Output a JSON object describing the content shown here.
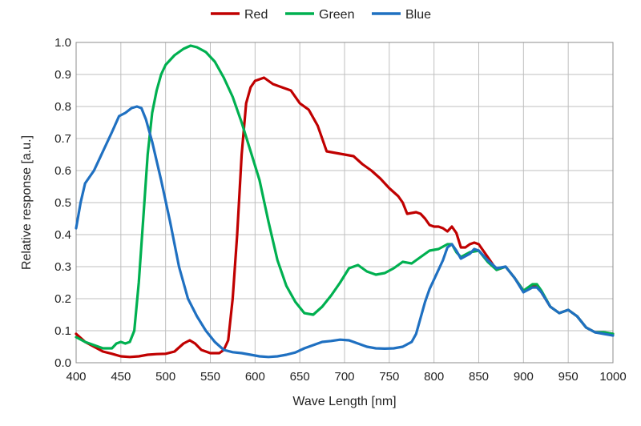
{
  "chart_data": {
    "type": "line",
    "title": "",
    "xlabel": "Wave Length [nm]",
    "ylabel": "Relative response [a.u.]",
    "xlim": [
      400,
      1000
    ],
    "ylim": [
      0,
      1.0
    ],
    "grid": true,
    "legend_position": "top",
    "x_ticks": [
      "400",
      "450",
      "500",
      "550",
      "600",
      "650",
      "700",
      "750",
      "800",
      "850",
      "900",
      "950",
      "1000"
    ],
    "y_ticks": [
      "0.0",
      "0.1",
      "0.2",
      "0.3",
      "0.4",
      "0.5",
      "0.6",
      "0.7",
      "0.8",
      "0.9",
      "1.0"
    ],
    "series": [
      {
        "name": "Red",
        "color": "#c00000",
        "points": [
          [
            400,
            0.09
          ],
          [
            410,
            0.065
          ],
          [
            420,
            0.05
          ],
          [
            430,
            0.035
          ],
          [
            440,
            0.028
          ],
          [
            450,
            0.02
          ],
          [
            460,
            0.018
          ],
          [
            470,
            0.02
          ],
          [
            480,
            0.025
          ],
          [
            490,
            0.027
          ],
          [
            500,
            0.028
          ],
          [
            510,
            0.035
          ],
          [
            520,
            0.06
          ],
          [
            527,
            0.07
          ],
          [
            533,
            0.06
          ],
          [
            540,
            0.04
          ],
          [
            550,
            0.03
          ],
          [
            560,
            0.03
          ],
          [
            565,
            0.04
          ],
          [
            570,
            0.07
          ],
          [
            575,
            0.2
          ],
          [
            580,
            0.4
          ],
          [
            585,
            0.65
          ],
          [
            590,
            0.81
          ],
          [
            595,
            0.86
          ],
          [
            600,
            0.88
          ],
          [
            605,
            0.885
          ],
          [
            610,
            0.89
          ],
          [
            615,
            0.88
          ],
          [
            620,
            0.87
          ],
          [
            630,
            0.86
          ],
          [
            640,
            0.85
          ],
          [
            650,
            0.81
          ],
          [
            660,
            0.79
          ],
          [
            670,
            0.74
          ],
          [
            675,
            0.7
          ],
          [
            680,
            0.66
          ],
          [
            690,
            0.655
          ],
          [
            700,
            0.65
          ],
          [
            710,
            0.645
          ],
          [
            720,
            0.62
          ],
          [
            730,
            0.6
          ],
          [
            740,
            0.575
          ],
          [
            750,
            0.545
          ],
          [
            760,
            0.52
          ],
          [
            765,
            0.5
          ],
          [
            770,
            0.465
          ],
          [
            780,
            0.47
          ],
          [
            785,
            0.465
          ],
          [
            790,
            0.45
          ],
          [
            795,
            0.43
          ],
          [
            800,
            0.425
          ],
          [
            805,
            0.425
          ],
          [
            810,
            0.42
          ],
          [
            815,
            0.41
          ],
          [
            820,
            0.425
          ],
          [
            825,
            0.405
          ],
          [
            830,
            0.36
          ],
          [
            835,
            0.36
          ],
          [
            840,
            0.37
          ],
          [
            845,
            0.375
          ],
          [
            850,
            0.37
          ],
          [
            855,
            0.35
          ],
          [
            860,
            0.33
          ],
          [
            870,
            0.29
          ],
          [
            880,
            0.3
          ],
          [
            890,
            0.265
          ],
          [
            900,
            0.225
          ],
          [
            910,
            0.24
          ],
          [
            915,
            0.24
          ],
          [
            920,
            0.22
          ],
          [
            930,
            0.175
          ],
          [
            940,
            0.155
          ],
          [
            950,
            0.165
          ],
          [
            960,
            0.145
          ],
          [
            970,
            0.11
          ],
          [
            980,
            0.095
          ],
          [
            990,
            0.095
          ],
          [
            1000,
            0.09
          ]
        ]
      },
      {
        "name": "Green",
        "color": "#00b050",
        "points": [
          [
            400,
            0.08
          ],
          [
            410,
            0.065
          ],
          [
            420,
            0.055
          ],
          [
            430,
            0.045
          ],
          [
            440,
            0.045
          ],
          [
            445,
            0.06
          ],
          [
            450,
            0.065
          ],
          [
            455,
            0.06
          ],
          [
            460,
            0.065
          ],
          [
            465,
            0.1
          ],
          [
            470,
            0.25
          ],
          [
            475,
            0.45
          ],
          [
            480,
            0.65
          ],
          [
            485,
            0.78
          ],
          [
            490,
            0.85
          ],
          [
            495,
            0.9
          ],
          [
            500,
            0.93
          ],
          [
            510,
            0.96
          ],
          [
            520,
            0.98
          ],
          [
            528,
            0.99
          ],
          [
            535,
            0.985
          ],
          [
            545,
            0.97
          ],
          [
            555,
            0.94
          ],
          [
            565,
            0.89
          ],
          [
            575,
            0.83
          ],
          [
            585,
            0.75
          ],
          [
            595,
            0.66
          ],
          [
            605,
            0.57
          ],
          [
            615,
            0.44
          ],
          [
            625,
            0.32
          ],
          [
            635,
            0.24
          ],
          [
            645,
            0.19
          ],
          [
            655,
            0.155
          ],
          [
            665,
            0.15
          ],
          [
            675,
            0.175
          ],
          [
            685,
            0.21
          ],
          [
            695,
            0.25
          ],
          [
            705,
            0.295
          ],
          [
            715,
            0.305
          ],
          [
            725,
            0.285
          ],
          [
            735,
            0.275
          ],
          [
            745,
            0.28
          ],
          [
            755,
            0.295
          ],
          [
            765,
            0.315
          ],
          [
            775,
            0.31
          ],
          [
            785,
            0.33
          ],
          [
            795,
            0.35
          ],
          [
            805,
            0.355
          ],
          [
            815,
            0.37
          ],
          [
            820,
            0.37
          ],
          [
            825,
            0.345
          ],
          [
            830,
            0.33
          ],
          [
            840,
            0.345
          ],
          [
            850,
            0.35
          ],
          [
            860,
            0.315
          ],
          [
            870,
            0.29
          ],
          [
            880,
            0.3
          ],
          [
            890,
            0.265
          ],
          [
            900,
            0.225
          ],
          [
            910,
            0.245
          ],
          [
            915,
            0.245
          ],
          [
            920,
            0.225
          ],
          [
            930,
            0.175
          ],
          [
            940,
            0.155
          ],
          [
            950,
            0.165
          ],
          [
            960,
            0.145
          ],
          [
            970,
            0.11
          ],
          [
            980,
            0.095
          ],
          [
            990,
            0.095
          ],
          [
            1000,
            0.09
          ]
        ]
      },
      {
        "name": "Blue",
        "color": "#1f70c1",
        "points": [
          [
            400,
            0.42
          ],
          [
            405,
            0.5
          ],
          [
            410,
            0.56
          ],
          [
            420,
            0.6
          ],
          [
            430,
            0.66
          ],
          [
            440,
            0.72
          ],
          [
            448,
            0.77
          ],
          [
            455,
            0.78
          ],
          [
            462,
            0.795
          ],
          [
            468,
            0.8
          ],
          [
            473,
            0.795
          ],
          [
            478,
            0.76
          ],
          [
            485,
            0.69
          ],
          [
            495,
            0.57
          ],
          [
            505,
            0.44
          ],
          [
            515,
            0.3
          ],
          [
            525,
            0.2
          ],
          [
            535,
            0.145
          ],
          [
            545,
            0.1
          ],
          [
            555,
            0.065
          ],
          [
            565,
            0.04
          ],
          [
            575,
            0.033
          ],
          [
            585,
            0.03
          ],
          [
            595,
            0.025
          ],
          [
            605,
            0.02
          ],
          [
            615,
            0.018
          ],
          [
            625,
            0.02
          ],
          [
            635,
            0.025
          ],
          [
            645,
            0.032
          ],
          [
            655,
            0.045
          ],
          [
            665,
            0.055
          ],
          [
            675,
            0.065
          ],
          [
            685,
            0.068
          ],
          [
            695,
            0.072
          ],
          [
            705,
            0.07
          ],
          [
            715,
            0.06
          ],
          [
            725,
            0.05
          ],
          [
            735,
            0.045
          ],
          [
            745,
            0.044
          ],
          [
            755,
            0.045
          ],
          [
            765,
            0.05
          ],
          [
            775,
            0.065
          ],
          [
            780,
            0.09
          ],
          [
            785,
            0.14
          ],
          [
            790,
            0.19
          ],
          [
            795,
            0.23
          ],
          [
            800,
            0.26
          ],
          [
            810,
            0.32
          ],
          [
            815,
            0.36
          ],
          [
            820,
            0.37
          ],
          [
            825,
            0.35
          ],
          [
            830,
            0.325
          ],
          [
            840,
            0.34
          ],
          [
            845,
            0.355
          ],
          [
            850,
            0.35
          ],
          [
            860,
            0.32
          ],
          [
            870,
            0.295
          ],
          [
            880,
            0.3
          ],
          [
            890,
            0.265
          ],
          [
            900,
            0.22
          ],
          [
            910,
            0.235
          ],
          [
            915,
            0.235
          ],
          [
            920,
            0.22
          ],
          [
            930,
            0.175
          ],
          [
            940,
            0.155
          ],
          [
            950,
            0.165
          ],
          [
            960,
            0.145
          ],
          [
            970,
            0.11
          ],
          [
            980,
            0.095
          ],
          [
            990,
            0.09
          ],
          [
            1000,
            0.085
          ]
        ]
      }
    ]
  }
}
